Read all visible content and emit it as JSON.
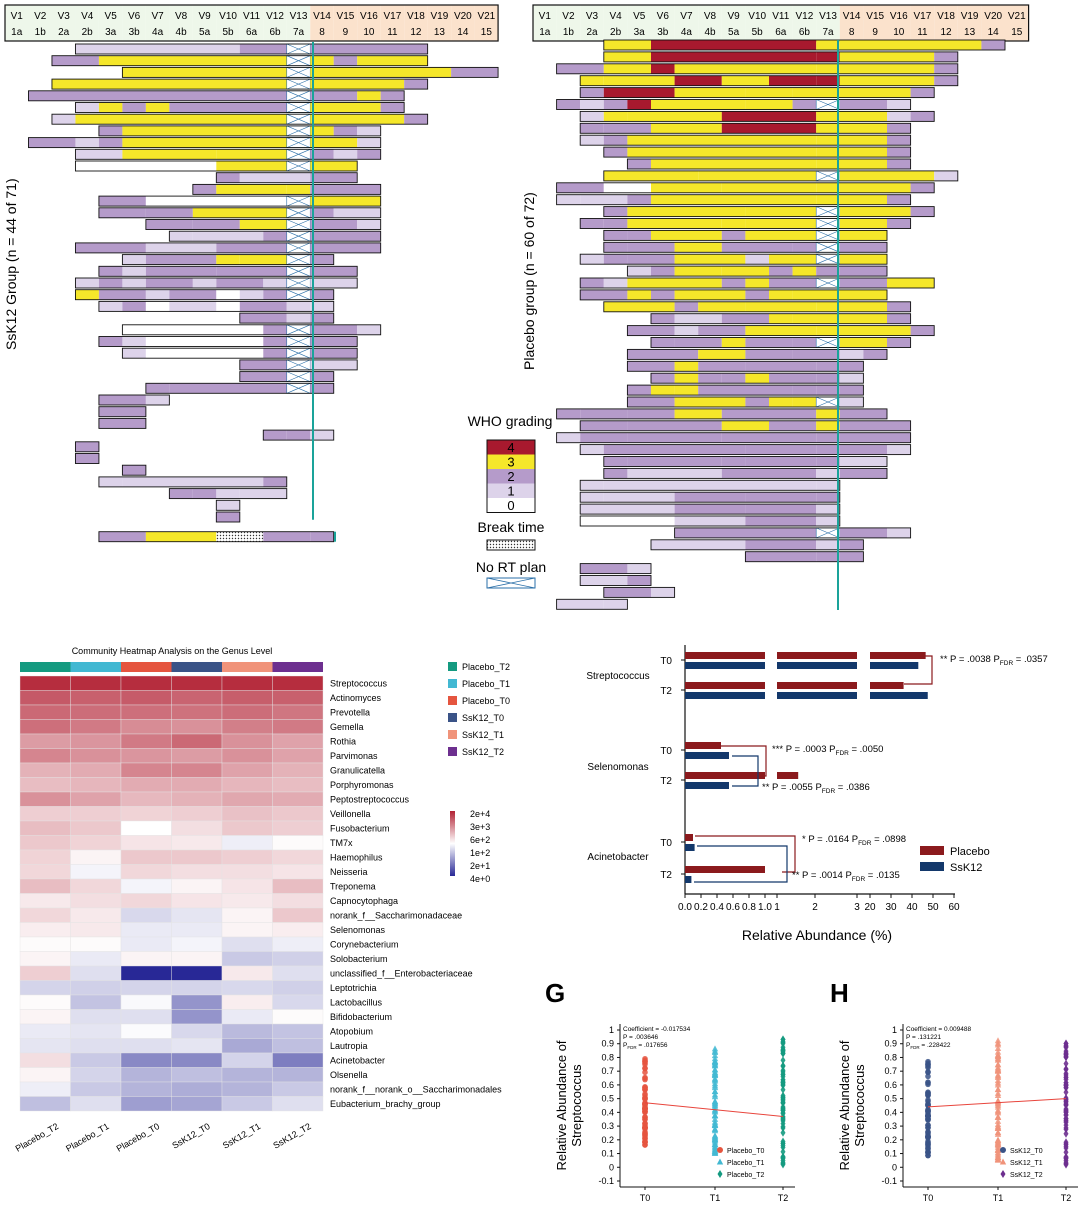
{
  "colors": {
    "who_4": "#a8192e",
    "who_3": "#f5e72a",
    "who_2": "#b59bca",
    "who_1": "#ddd3ea",
    "who_0": "#ffffff",
    "rt_line": "#1aa39a",
    "header_v1_13": "#eef7ea",
    "header_v14_21": "#fbe2cc",
    "placebo_bar": "#8b1a1d",
    "ssk12_bar": "#13386b",
    "placebo_t0": "#e5553f",
    "placebo_t1": "#42b8d2",
    "placebo_t2": "#149a80",
    "ssk12_t0": "#3a5387",
    "ssk12_t1": "#f0937a",
    "ssk12_t2": "#6d2f8f",
    "trend_line": "#e8453c"
  },
  "visit_header": {
    "visits": [
      "V1",
      "V2",
      "V3",
      "V4",
      "V5",
      "V6",
      "V7",
      "V8",
      "V9",
      "V10",
      "V11",
      "V12",
      "V13",
      "V14",
      "V15",
      "V16",
      "V17",
      "V18",
      "V19",
      "V20",
      "V21"
    ],
    "weeks": [
      "1a",
      "1b",
      "2a",
      "2b",
      "3a",
      "3b",
      "4a",
      "4b",
      "5a",
      "5b",
      "6a",
      "6b",
      "7a",
      "8",
      "9",
      "10",
      "11",
      "12",
      "13",
      "14",
      "15"
    ]
  },
  "swimmer": {
    "ssk12_label": "SsK12 Group (n = 44 of 71)",
    "placebo_label": "Placebo group (n = 60 of 72)",
    "legend": {
      "who_title": "WHO grading",
      "grades": [
        "4",
        "3",
        "2",
        "1",
        "0"
      ],
      "break_label": "Break time",
      "nort_label": "No RT plan"
    }
  },
  "heatmap": {
    "title": "Community Heatmap Analysis on the Genus Level",
    "groups": [
      "Placebo_T2",
      "Placebo_T1",
      "Placebo_T0",
      "SsK12_T0",
      "SsK12_T1",
      "SsK12_T2"
    ],
    "genera": [
      "Streptococcus",
      "Actinomyces",
      "Prevotella",
      "Gemella",
      "Rothia",
      "Parvimonas",
      "Granulicatella",
      "Porphyromonas",
      "Peptostreptococcus",
      "Veillonella",
      "Fusobacterium",
      "TM7x",
      "Haemophilus",
      "Neisseria",
      "Treponema",
      "Capnocytophaga",
      "norank_f__Saccharimonadaceae",
      "Selenomonas",
      "Corynebacterium",
      "Solobacterium",
      "unclassified_f__Enterobacteriaceae",
      "Leptotrichia",
      "Lactobacillus",
      "Bifidobacterium",
      "Atopobium",
      "Lautropia",
      "Acinetobacter",
      "Olsenella",
      "norank_f__norank_o__Saccharimonadales",
      "Eubacterium_brachy_group"
    ],
    "values": [
      [
        0.95,
        0.95,
        0.95,
        0.95,
        0.95,
        0.95
      ],
      [
        0.75,
        0.72,
        0.74,
        0.7,
        0.73,
        0.72
      ],
      [
        0.68,
        0.66,
        0.65,
        0.64,
        0.66,
        0.62
      ],
      [
        0.65,
        0.6,
        0.52,
        0.5,
        0.58,
        0.6
      ],
      [
        0.45,
        0.48,
        0.6,
        0.68,
        0.5,
        0.42
      ],
      [
        0.55,
        0.5,
        0.48,
        0.45,
        0.5,
        0.42
      ],
      [
        0.35,
        0.38,
        0.55,
        0.55,
        0.42,
        0.35
      ],
      [
        0.3,
        0.33,
        0.38,
        0.38,
        0.33,
        0.3
      ],
      [
        0.5,
        0.42,
        0.32,
        0.35,
        0.4,
        0.38
      ],
      [
        0.22,
        0.22,
        0.2,
        0.22,
        0.28,
        0.25
      ],
      [
        0.3,
        0.25,
        0.0,
        0.15,
        0.25,
        0.22
      ],
      [
        0.25,
        0.2,
        0.12,
        0.1,
        -0.08,
        0.02
      ],
      [
        0.2,
        0.05,
        0.25,
        0.25,
        0.22,
        0.18
      ],
      [
        0.18,
        -0.05,
        0.18,
        0.15,
        0.15,
        0.12
      ],
      [
        0.3,
        0.18,
        -0.05,
        0.05,
        0.12,
        0.3
      ],
      [
        0.1,
        0.15,
        0.18,
        0.12,
        0.1,
        0.15
      ],
      [
        0.18,
        0.1,
        -0.18,
        -0.12,
        0.05,
        0.25
      ],
      [
        0.08,
        0.1,
        -0.1,
        -0.1,
        0.05,
        0.08
      ],
      [
        0.02,
        0.02,
        -0.1,
        -0.05,
        -0.15,
        -0.08
      ],
      [
        0.05,
        -0.1,
        0.05,
        0.05,
        -0.25,
        -0.22
      ],
      [
        0.22,
        -0.15,
        -1.0,
        -1.0,
        0.1,
        -0.15
      ],
      [
        -0.2,
        -0.22,
        -0.2,
        -0.2,
        -0.18,
        -0.22
      ],
      [
        0.02,
        -0.28,
        -0.03,
        -0.5,
        0.08,
        -0.18
      ],
      [
        0.05,
        -0.15,
        -0.15,
        -0.5,
        -0.1,
        0.02
      ],
      [
        -0.1,
        -0.12,
        -0.02,
        -0.18,
        -0.32,
        -0.28
      ],
      [
        -0.12,
        -0.15,
        -0.15,
        -0.12,
        -0.4,
        -0.3
      ],
      [
        0.15,
        -0.25,
        -0.55,
        -0.55,
        -0.2,
        -0.6
      ],
      [
        0.05,
        -0.2,
        -0.35,
        -0.3,
        -0.35,
        -0.35
      ],
      [
        -0.08,
        -0.25,
        -0.35,
        -0.38,
        -0.35,
        -0.25
      ],
      [
        -0.3,
        -0.15,
        -0.45,
        -0.42,
        -0.25,
        -0.15
      ]
    ],
    "scale_labels": [
      "2e+4",
      "3e+3",
      "6e+2",
      "1e+2",
      "2e+1",
      "4e+0"
    ]
  },
  "chart_data": [
    {
      "type": "bar",
      "title": "",
      "xlabel": "Relative Abundance (%)",
      "x_ticks": [
        "0.0",
        "0.2",
        "0.4",
        "0.6",
        "0.8",
        "1.0",
        "1",
        "2",
        "3",
        "20",
        "30",
        "40",
        "50",
        "60"
      ],
      "groups": [
        {
          "genus": "Streptococcus",
          "timepoints": [
            "T0",
            "T2"
          ],
          "Placebo": [
            46.5,
            36.0
          ],
          "SsK12": [
            43.0,
            47.5
          ],
          "annotation": [
            "** P = .0038 P",
            "FDR",
            " = .0357"
          ]
        },
        {
          "genus": "Selenomonas",
          "timepoints": [
            "T0",
            "T2"
          ],
          "Placebo": [
            0.45,
            1.6
          ],
          "SsK12": [
            0.55,
            0.55
          ],
          "annotation": [
            "*** P = .0003 P",
            "FDR",
            " = .0050"
          ],
          "annotation2": [
            "** P = .0055 P",
            "FDR",
            " = .0386"
          ]
        },
        {
          "genus": "Acinetobacter",
          "timepoints": [
            "T0",
            "T2"
          ],
          "Placebo": [
            0.1,
            1.02
          ],
          "SsK12": [
            0.12,
            0.08
          ],
          "annotation": [
            "* P = .0164 P",
            "FDR",
            " = .0898"
          ],
          "annotation2": [
            "** P = .0014 P",
            "FDR",
            " = .0135"
          ]
        }
      ],
      "legend": [
        "Placebo",
        "SsK12"
      ]
    },
    {
      "type": "scatter",
      "panel": "G",
      "ylabel": "Relative Abundance of Streptococcus",
      "x": [
        "T0",
        "T1",
        "T2"
      ],
      "ylim": [
        -0.1,
        1.0
      ],
      "y_ticks": [
        "-0.1",
        "0",
        "0.1",
        "0.2",
        "0.3",
        "0.4",
        "0.5",
        "0.6",
        "0.7",
        "0.8",
        "0.9",
        "1"
      ],
      "stats": [
        "Coefficient = -0.017534",
        "P = .003646",
        "P",
        "FDR",
        " = .017656"
      ],
      "series": [
        {
          "name": "Placebo_T0",
          "x": "T0",
          "range": [
            0.13,
            0.8
          ]
        },
        {
          "name": "Placebo_T1",
          "x": "T1",
          "range": [
            0.1,
            0.87
          ]
        },
        {
          "name": "Placebo_T2",
          "x": "T2",
          "range": [
            0.0,
            0.94
          ]
        }
      ],
      "trend": [
        0.47,
        0.37
      ]
    },
    {
      "type": "scatter",
      "panel": "H",
      "ylabel": "Relative Abundance of Streptococcus",
      "x": [
        "T0",
        "T1",
        "T2"
      ],
      "ylim": [
        -0.1,
        1.0
      ],
      "y_ticks": [
        "-0.1",
        "0",
        "0.1",
        "0.2",
        "0.3",
        "0.4",
        "0.5",
        "0.6",
        "0.7",
        "0.8",
        "0.9",
        "1"
      ],
      "stats": [
        "Coefficient = 0.009488",
        "P = .131221",
        "P",
        "FDR",
        " = .228422"
      ],
      "series": [
        {
          "name": "SsK12_T0",
          "x": "T0",
          "range": [
            0.05,
            0.78
          ]
        },
        {
          "name": "SsK12_T1",
          "x": "T1",
          "range": [
            0.05,
            0.93
          ]
        },
        {
          "name": "SsK12_T2",
          "x": "T2",
          "range": [
            0.0,
            0.91
          ]
        }
      ],
      "trend": [
        0.44,
        0.5
      ]
    }
  ]
}
